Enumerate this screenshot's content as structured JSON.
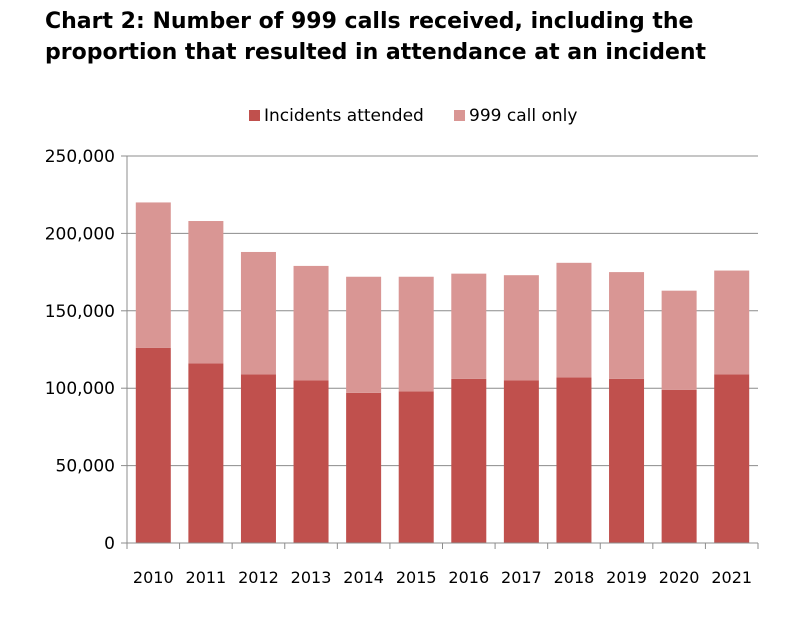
{
  "title": {
    "line1": "Chart 2: Number of 999 calls received, including the",
    "line2": "proportion that resulted in attendance at an incident"
  },
  "chart_data": {
    "type": "bar",
    "stacked": true,
    "categories": [
      "2010",
      "2011",
      "2012",
      "2013",
      "2014",
      "2015",
      "2016",
      "2017",
      "2018",
      "2019",
      "2020",
      "2021"
    ],
    "series": [
      {
        "name": "Incidents attended",
        "color": "#c0504d",
        "values": [
          126000,
          116000,
          109000,
          105000,
          97000,
          98000,
          106000,
          105000,
          107000,
          106000,
          99000,
          109000
        ]
      },
      {
        "name": "999 call only",
        "color": "#d99694",
        "values": [
          94000,
          92000,
          79000,
          74000,
          75000,
          74000,
          68000,
          68000,
          74000,
          69000,
          64000,
          67000
        ]
      }
    ],
    "yticks": [
      "0",
      "50,000",
      "100,000",
      "150,000",
      "200,000",
      "250,000"
    ],
    "ylim": [
      0,
      250000
    ],
    "legend_position": "top",
    "grid": true,
    "xlabel": "",
    "ylabel": ""
  }
}
